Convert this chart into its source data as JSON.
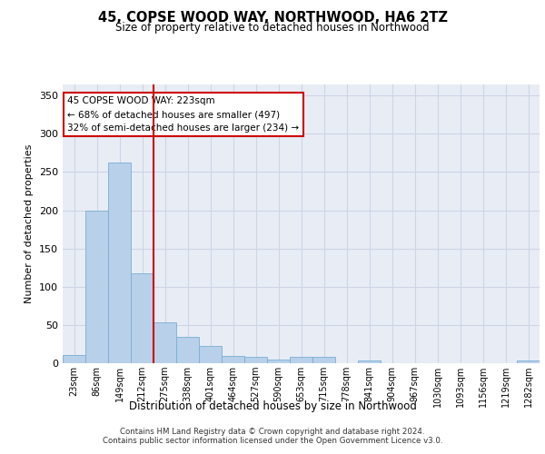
{
  "title": "45, COPSE WOOD WAY, NORTHWOOD, HA6 2TZ",
  "subtitle": "Size of property relative to detached houses in Northwood",
  "xlabel": "Distribution of detached houses by size in Northwood",
  "ylabel": "Number of detached properties",
  "bar_labels": [
    "23sqm",
    "86sqm",
    "149sqm",
    "212sqm",
    "275sqm",
    "338sqm",
    "401sqm",
    "464sqm",
    "527sqm",
    "590sqm",
    "653sqm",
    "715sqm",
    "778sqm",
    "841sqm",
    "904sqm",
    "967sqm",
    "1030sqm",
    "1093sqm",
    "1156sqm",
    "1219sqm",
    "1282sqm"
  ],
  "bar_values": [
    11,
    200,
    262,
    117,
    53,
    35,
    23,
    9,
    8,
    5,
    8,
    8,
    0,
    4,
    0,
    0,
    0,
    0,
    0,
    0,
    3
  ],
  "bar_color": "#b8d0ea",
  "bar_edge_color": "#7aadd4",
  "vline_x_index": 3,
  "vline_color": "#cc0000",
  "annotation_line1": "45 COPSE WOOD WAY: 223sqm",
  "annotation_line2": "← 68% of detached houses are smaller (497)",
  "annotation_line3": "32% of semi-detached houses are larger (234) →",
  "annotation_box_color": "#ffffff",
  "annotation_box_edge_color": "#cc0000",
  "ylim": [
    0,
    365
  ],
  "yticks": [
    0,
    50,
    100,
    150,
    200,
    250,
    300,
    350
  ],
  "grid_color": "#cdd5e5",
  "background_color": "#e8edf5",
  "footer_line1": "Contains HM Land Registry data © Crown copyright and database right 2024.",
  "footer_line2": "Contains public sector information licensed under the Open Government Licence v3.0."
}
